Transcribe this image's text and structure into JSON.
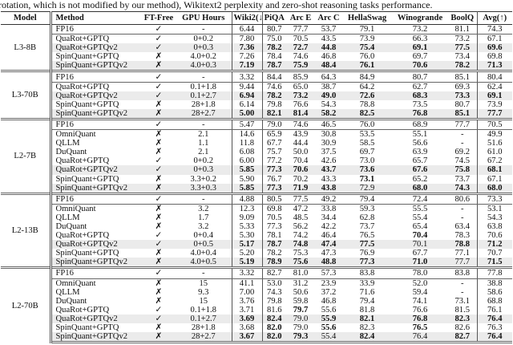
{
  "caption": "rotation, which is not modified by our method), Wikitext2 perplexity and zero-shot reasoning tasks performance.",
  "headers": [
    "Model",
    "Method",
    "FT-Free",
    "GPU Hours",
    "Wiki2(↓)",
    "PiQA",
    "Arc E",
    "Arc C",
    "HellaSwag",
    "Winogrande",
    "BoolQ",
    "Avg(↑)"
  ],
  "groups": [
    {
      "model": "L3-8B",
      "rows": [
        {
          "method": "FP16",
          "ft_free": "✓",
          "gpu_hours": "-",
          "values": [
            "6.44",
            "80.7",
            "77.7",
            "53.7",
            "79.1",
            "73.2",
            "81.1",
            "74.3"
          ],
          "bold": [],
          "highlighted": false
        },
        {
          "method": "QuaRot+GPTQ",
          "ft_free": "✓",
          "gpu_hours": "0+0.2",
          "values": [
            "7.80",
            "75.0",
            "70.5",
            "43.5",
            "73.9",
            "66.3",
            "73.2",
            "67.1"
          ],
          "bold": [],
          "highlighted": false
        },
        {
          "method": "QuaRot+GPTQv2",
          "ft_free": "✓",
          "gpu_hours": "0+0.3",
          "values": [
            "7.36",
            "78.2",
            "72.7",
            "44.8",
            "75.4",
            "69.1",
            "77.5",
            "69.6"
          ],
          "bold": [
            0,
            1,
            2,
            3,
            4,
            5,
            6,
            7
          ],
          "highlighted": true
        },
        {
          "method": "SpinQuant+GPTQ",
          "ft_free": "✗",
          "gpu_hours": "4.0+0.2",
          "values": [
            "7.26",
            "78.4",
            "74.6",
            "46.8",
            "76.0",
            "69.7",
            "73.4",
            "69.8"
          ],
          "bold": [],
          "highlighted": false
        },
        {
          "method": "SpinQuant+GPTQv2",
          "ft_free": "✗",
          "gpu_hours": "4.0+0.3",
          "values": [
            "7.19",
            "78.7",
            "75.9",
            "48.4",
            "76.1",
            "70.6",
            "78.2",
            "71.3"
          ],
          "bold": [
            0,
            1,
            2,
            3,
            4,
            5,
            6,
            7
          ],
          "highlighted": true
        }
      ]
    },
    {
      "model": "L3-70B",
      "rows": [
        {
          "method": "FP16",
          "ft_free": "✓",
          "gpu_hours": "-",
          "values": [
            "3.32",
            "84.4",
            "85.9",
            "64.3",
            "84.9",
            "80.7",
            "85.1",
            "80.4"
          ],
          "bold": [],
          "highlighted": false
        },
        {
          "method": "QuaRot+GPTQ",
          "ft_free": "✓",
          "gpu_hours": "0.1+1.8",
          "values": [
            "9.44",
            "74.6",
            "65.0",
            "38.7",
            "64.2",
            "62.7",
            "69.3",
            "62.4"
          ],
          "bold": [],
          "highlighted": false
        },
        {
          "method": "QuaRot+GPTQv2",
          "ft_free": "✓",
          "gpu_hours": "0.1+2.7",
          "values": [
            "6.94",
            "78.2",
            "73.2",
            "49.0",
            "72.6",
            "68.3",
            "73.3",
            "69.1"
          ],
          "bold": [
            0,
            1,
            2,
            3,
            4,
            5,
            6,
            7
          ],
          "highlighted": true
        },
        {
          "method": "SpinQuant+GPTQ",
          "ft_free": "✗",
          "gpu_hours": "28+1.8",
          "values": [
            "6.14",
            "79.8",
            "76.6",
            "54.3",
            "78.8",
            "73.5",
            "80.7",
            "73.9"
          ],
          "bold": [],
          "highlighted": false
        },
        {
          "method": "SpinQuant+GPTQv2",
          "ft_free": "✗",
          "gpu_hours": "28+2.7",
          "values": [
            "5.00",
            "82.1",
            "81.4",
            "58.2",
            "82.5",
            "76.8",
            "85.1",
            "77.7"
          ],
          "bold": [
            0,
            1,
            2,
            3,
            4,
            5,
            6,
            7
          ],
          "highlighted": true
        }
      ]
    },
    {
      "model": "L2-7B",
      "rows": [
        {
          "method": "FP16",
          "ft_free": "✓",
          "gpu_hours": "-",
          "values": [
            "5.47",
            "79.0",
            "74.6",
            "46.5",
            "76.0",
            "68.9",
            "77.7",
            "70.5"
          ],
          "bold": [],
          "highlighted": false
        },
        {
          "method": "OmniQuant",
          "ft_free": "✗",
          "gpu_hours": "2.1",
          "values": [
            "14.6",
            "65.9",
            "43.9",
            "30.8",
            "53.5",
            "55.1",
            "-",
            "49.9"
          ],
          "bold": [],
          "highlighted": false
        },
        {
          "method": "QLLM",
          "ft_free": "✗",
          "gpu_hours": "1.1",
          "values": [
            "11.8",
            "67.7",
            "44.4",
            "30.9",
            "58.5",
            "56.6",
            "-",
            "51.6"
          ],
          "bold": [],
          "highlighted": false
        },
        {
          "method": "DuQuant",
          "ft_free": "✗",
          "gpu_hours": "2.1",
          "values": [
            "6.08",
            "75.7",
            "50.0",
            "37.5",
            "69.7",
            "63.9",
            "69.2",
            "61.0"
          ],
          "bold": [],
          "highlighted": false
        },
        {
          "method": "QuaRot+GPTQ",
          "ft_free": "✓",
          "gpu_hours": "0+0.2",
          "values": [
            "6.00",
            "77.2",
            "70.4",
            "42.6",
            "73.0",
            "65.7",
            "74.5",
            "67.2"
          ],
          "bold": [],
          "highlighted": false
        },
        {
          "method": "QuaRot+GPTQv2",
          "ft_free": "✓",
          "gpu_hours": "0+0.3",
          "values": [
            "5.85",
            "77.3",
            "70.6",
            "43.7",
            "73.6",
            "67.6",
            "75.8",
            "68.1"
          ],
          "bold": [
            0,
            1,
            2,
            3,
            4,
            5,
            6,
            7
          ],
          "highlighted": true
        },
        {
          "method": "SpinQuant+GPTQ",
          "ft_free": "✗",
          "gpu_hours": "3.3+0.2",
          "values": [
            "5.90",
            "76.7",
            "70.2",
            "43.3",
            "73.1",
            "65.2",
            "73.7",
            "67.1"
          ],
          "bold": [
            4
          ],
          "highlighted": false
        },
        {
          "method": "SpinQuant+GPTQv2",
          "ft_free": "✗",
          "gpu_hours": "3.3+0.3",
          "values": [
            "5.85",
            "77.3",
            "71.9",
            "43.8",
            "72.9",
            "68.0",
            "74.3",
            "68.0"
          ],
          "bold": [
            0,
            1,
            2,
            3,
            5,
            6,
            7
          ],
          "highlighted": true
        }
      ]
    },
    {
      "model": "L2-13B",
      "rows": [
        {
          "method": "FP16",
          "ft_free": "✓",
          "gpu_hours": "-",
          "values": [
            "4.88",
            "80.5",
            "77.5",
            "49.2",
            "79.4",
            "72.4",
            "80.6",
            "73.3"
          ],
          "bold": [],
          "highlighted": false
        },
        {
          "method": "OmniQuant",
          "ft_free": "✗",
          "gpu_hours": "3.2",
          "values": [
            "12.3",
            "69.8",
            "47.2",
            "33.8",
            "59.3",
            "55.5",
            "-",
            "53.1"
          ],
          "bold": [],
          "highlighted": false
        },
        {
          "method": "QLLM",
          "ft_free": "✗",
          "gpu_hours": "1.7",
          "values": [
            "9.09",
            "70.5",
            "48.5",
            "34.4",
            "62.8",
            "55.4",
            "-",
            "54.3"
          ],
          "bold": [],
          "highlighted": false
        },
        {
          "method": "DuQuant",
          "ft_free": "✗",
          "gpu_hours": "3.2",
          "values": [
            "5.33",
            "77.3",
            "56.2",
            "42.2",
            "73.7",
            "65.4",
            "63.4",
            "63.8"
          ],
          "bold": [],
          "highlighted": false
        },
        {
          "method": "QuaRot+GPTQ",
          "ft_free": "✓",
          "gpu_hours": "0+0.4",
          "values": [
            "5.30",
            "78.1",
            "74.2",
            "46.4",
            "76.5",
            "70.4",
            "78.3",
            "70.6"
          ],
          "bold": [
            5
          ],
          "highlighted": false
        },
        {
          "method": "QuaRot+GPTQv2",
          "ft_free": "✓",
          "gpu_hours": "0+0.5",
          "values": [
            "5.17",
            "78.7",
            "74.8",
            "47.4",
            "77.5",
            "70.1",
            "78.8",
            "71.2"
          ],
          "bold": [
            0,
            1,
            2,
            3,
            4,
            6,
            7
          ],
          "highlighted": true
        },
        {
          "method": "SpinQuant+GPTQ",
          "ft_free": "✗",
          "gpu_hours": "4.0+0.4",
          "values": [
            "5.20",
            "78.2",
            "75.3",
            "47.3",
            "76.9",
            "67.7",
            "77.1",
            "70.7"
          ],
          "bold": [],
          "highlighted": false
        },
        {
          "method": "SpinQuant+GPTQv2",
          "ft_free": "✗",
          "gpu_hours": "4.0+0.5",
          "values": [
            "5.19",
            "78.9",
            "75.6",
            "48.8",
            "77.3",
            "71.0",
            "77.7",
            "71.5"
          ],
          "bold": [
            0,
            1,
            2,
            3,
            4,
            5,
            7
          ],
          "highlighted": true
        }
      ]
    },
    {
      "model": "L2-70B",
      "rows": [
        {
          "method": "FP16",
          "ft_free": "✓",
          "gpu_hours": "-",
          "values": [
            "3.32",
            "82.7",
            "81.0",
            "57.3",
            "83.8",
            "78.0",
            "83.8",
            "77.8"
          ],
          "bold": [],
          "highlighted": false
        },
        {
          "method": "OmniQuant",
          "ft_free": "✗",
          "gpu_hours": "15",
          "values": [
            "41.1",
            "53.0",
            "31.2",
            "23.9",
            "33.9",
            "52.0",
            "-",
            "38.8"
          ],
          "bold": [],
          "highlighted": false
        },
        {
          "method": "QLLM",
          "ft_free": "✗",
          "gpu_hours": "9.3",
          "values": [
            "7.00",
            "74.3",
            "50.6",
            "37.2",
            "71.6",
            "59.4",
            "-",
            "58.6"
          ],
          "bold": [],
          "highlighted": false
        },
        {
          "method": "DuQuant",
          "ft_free": "✗",
          "gpu_hours": "15",
          "values": [
            "3.76",
            "79.8",
            "59.8",
            "46.8",
            "79.4",
            "74.1",
            "73.1",
            "68.8"
          ],
          "bold": [],
          "highlighted": false
        },
        {
          "method": "QuaRot+GPTQ",
          "ft_free": "✓",
          "gpu_hours": "0.1+1.8",
          "values": [
            "3.71",
            "81.6",
            "79.7",
            "55.6",
            "81.8",
            "76.6",
            "81.5",
            "76.1"
          ],
          "bold": [
            2
          ],
          "highlighted": false
        },
        {
          "method": "QuaRot+GPTQv2",
          "ft_free": "✓",
          "gpu_hours": "0.1+2.7",
          "values": [
            "3.69",
            "82.4",
            "79.0",
            "55.9",
            "82.1",
            "76.8",
            "82.3",
            "76.4"
          ],
          "bold": [
            0,
            1,
            3,
            4,
            5,
            6,
            7
          ],
          "highlighted": true
        },
        {
          "method": "SpinQuant+GPTQ",
          "ft_free": "✗",
          "gpu_hours": "28+1.8",
          "values": [
            "3.68",
            "82.0",
            "79.0",
            "55.6",
            "82.3",
            "76.5",
            "82.6",
            "76.3"
          ],
          "bold": [
            1,
            3,
            5
          ],
          "highlighted": false
        },
        {
          "method": "SpinQuant+GPTQv2",
          "ft_free": "✗",
          "gpu_hours": "28+2.7",
          "values": [
            "3.67",
            "82.0",
            "79.3",
            "55.4",
            "82.4",
            "76.4",
            "82.7",
            "76.4"
          ],
          "bold": [
            0,
            1,
            2,
            4,
            6,
            7
          ],
          "highlighted": true
        }
      ]
    }
  ]
}
